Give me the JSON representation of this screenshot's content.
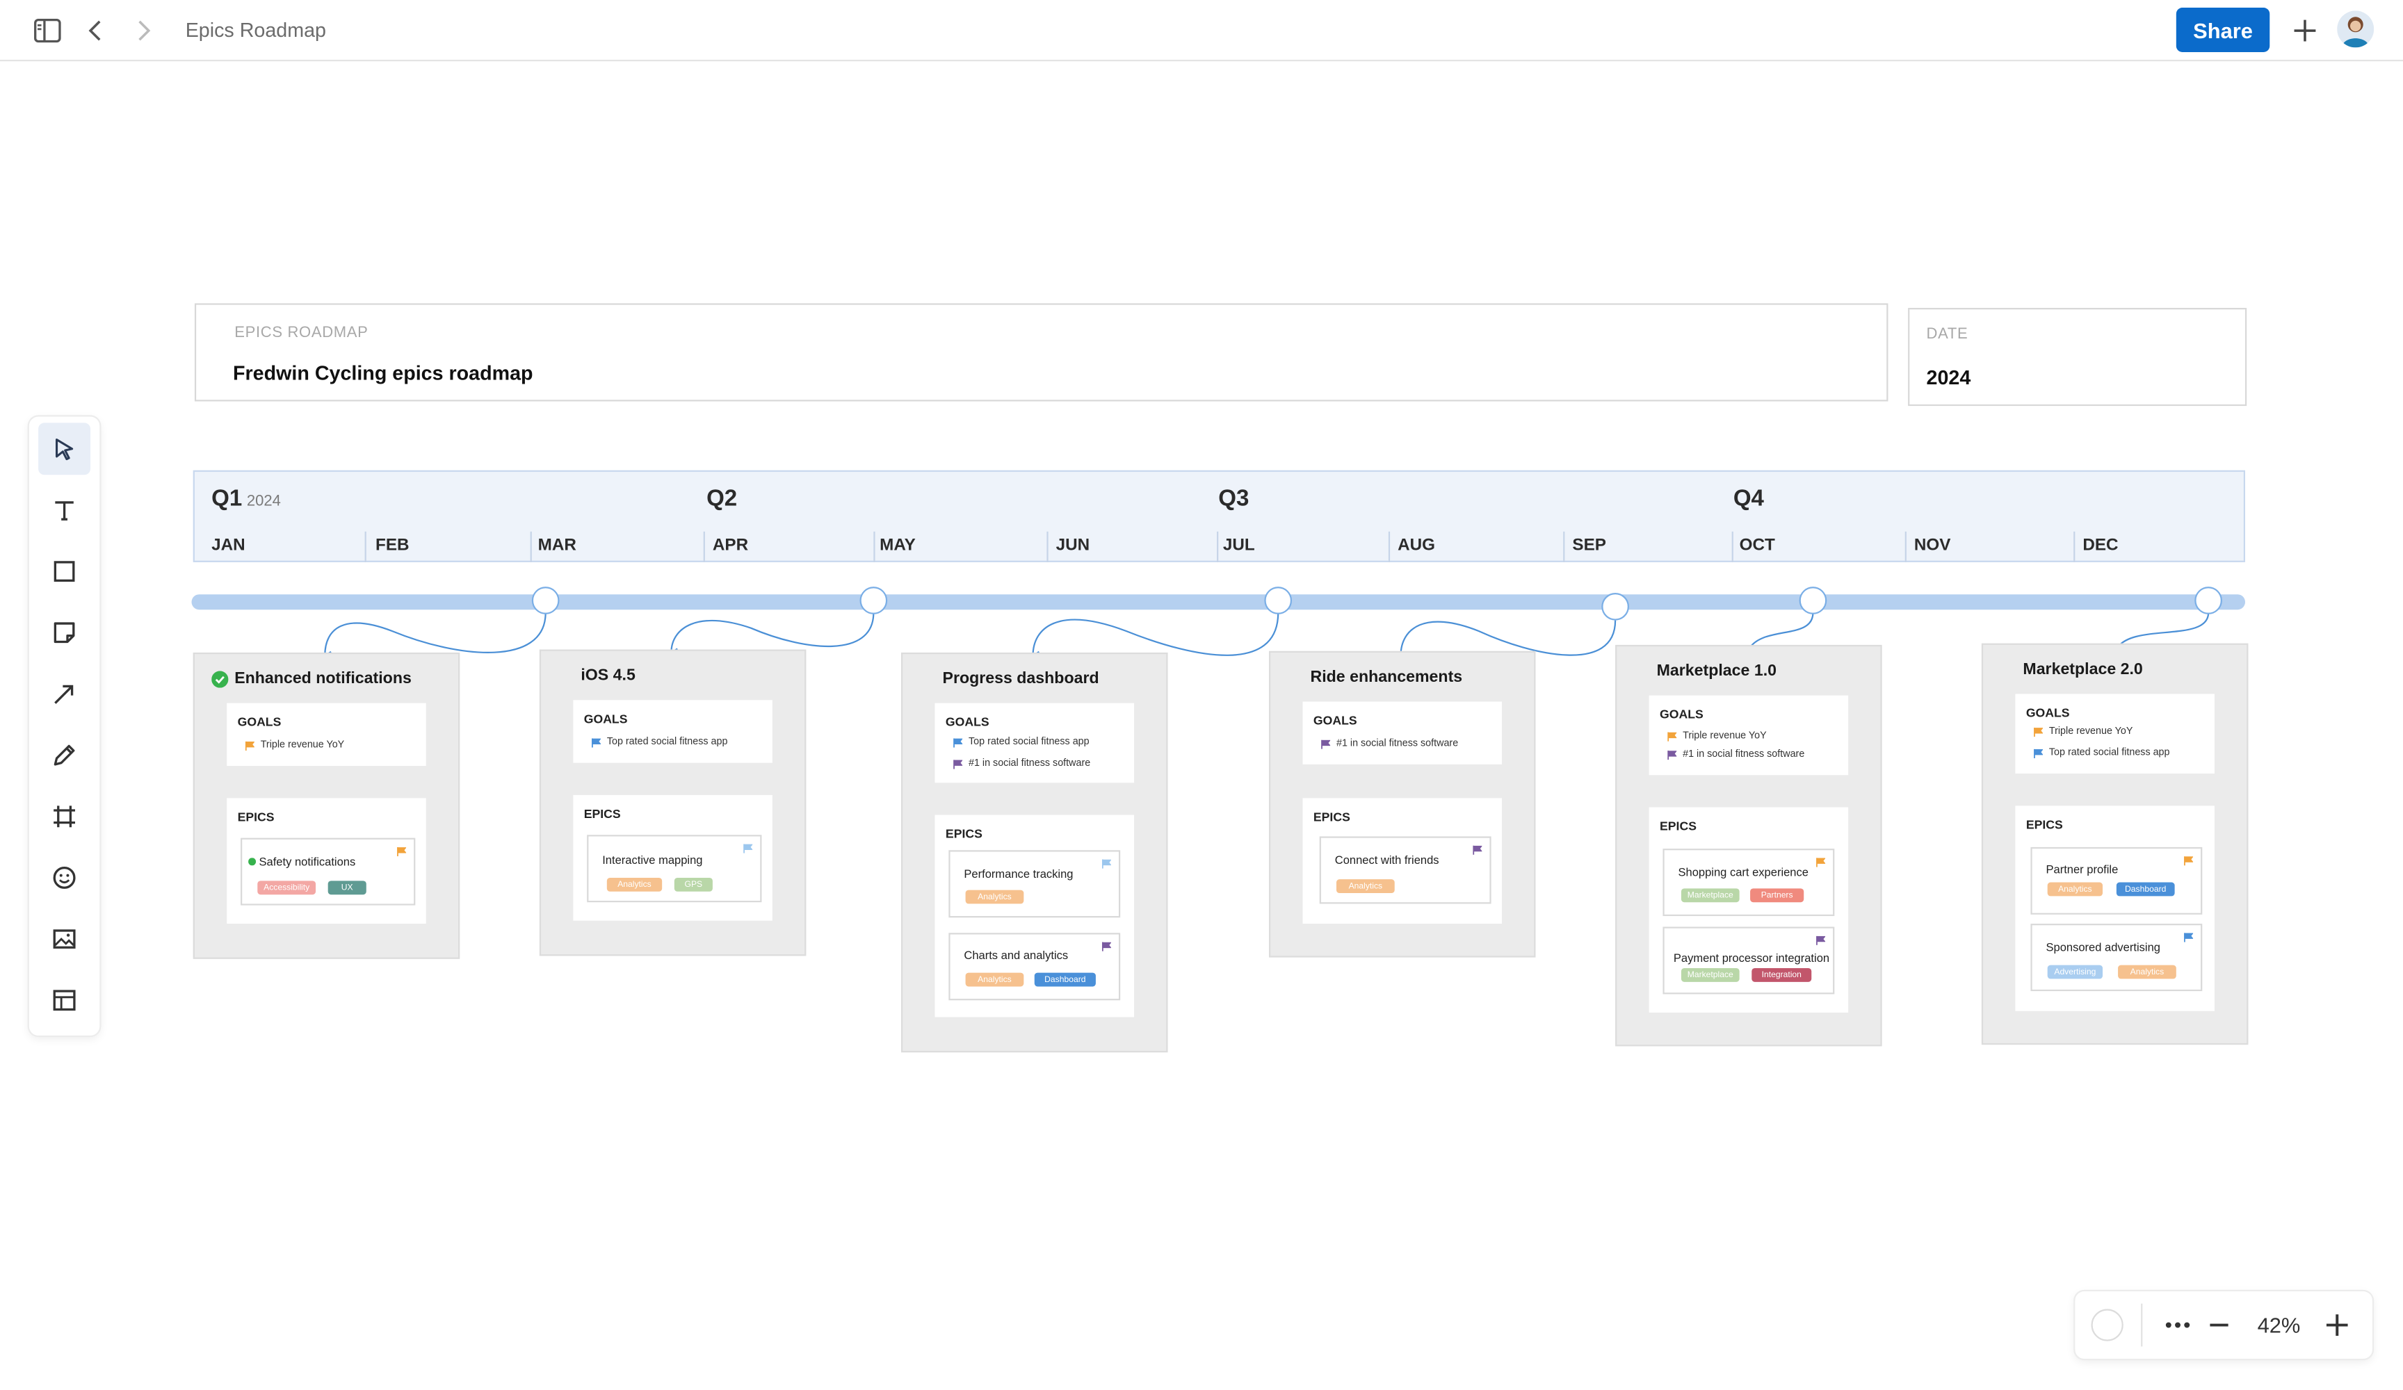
{
  "topbar": {
    "title": "Epics Roadmap",
    "share_label": "Share"
  },
  "tools": [
    "select-tool",
    "text-tool",
    "shape-tool",
    "sticky-note-tool",
    "arrow-tool",
    "pen-tool",
    "frame-tool",
    "emoji-tool",
    "image-tool",
    "template-tool"
  ],
  "header": {
    "label": "EPICS ROADMAP",
    "title": "Fredwin Cycling epics roadmap",
    "date_label": "DATE",
    "date_value": "2024"
  },
  "timeline": {
    "quarters": [
      {
        "label": "Q1",
        "year": "2024"
      },
      {
        "label": "Q2",
        "year": ""
      },
      {
        "label": "Q3",
        "year": ""
      },
      {
        "label": "Q4",
        "year": ""
      }
    ],
    "months": [
      "JAN",
      "FEB",
      "MAR",
      "APR",
      "MAY",
      "JUN",
      "JUL",
      "AUG",
      "SEP",
      "OCT",
      "NOV",
      "DEC"
    ]
  },
  "cards": [
    {
      "title": "Enhanced notifications",
      "done": true,
      "goals_label": "GOALS",
      "epics_label": "EPICS",
      "goals": [
        {
          "text": "Triple revenue YoY",
          "color": "#f2a33a"
        }
      ],
      "epics": [
        {
          "name": "Safety notifications",
          "done": true,
          "flag": "#f2a33a",
          "tags": [
            {
              "text": "Accessibility",
              "color": "#f3a7a4"
            },
            {
              "text": "UX",
              "color": "#5f9b93"
            }
          ]
        }
      ]
    },
    {
      "title": "iOS 4.5",
      "done": false,
      "goals_label": "GOALS",
      "epics_label": "EPICS",
      "goals": [
        {
          "text": "Top rated social fitness app",
          "color": "#4a90d9"
        }
      ],
      "epics": [
        {
          "name": "Interactive mapping",
          "done": false,
          "flag": "#9cc7ee",
          "tags": [
            {
              "text": "Analytics",
              "color": "#f6c18e"
            },
            {
              "text": "GPS",
              "color": "#b9d7a8"
            }
          ]
        }
      ]
    },
    {
      "title": "Progress dashboard",
      "done": false,
      "goals_label": "GOALS",
      "epics_label": "EPICS",
      "goals": [
        {
          "text": "Top rated social fitness app",
          "color": "#4a90d9"
        },
        {
          "text": "#1 in social fitness software",
          "color": "#7a5aa0"
        }
      ],
      "epics": [
        {
          "name": "Performance tracking",
          "done": false,
          "flag": "#9cc7ee",
          "tags": [
            {
              "text": "Analytics",
              "color": "#f6c18e"
            }
          ]
        },
        {
          "name": "Charts and analytics",
          "done": false,
          "flag": "#7a5aa0",
          "tags": [
            {
              "text": "Analytics",
              "color": "#f6c18e"
            },
            {
              "text": "Dashboard",
              "color": "#4a90d9"
            }
          ]
        }
      ]
    },
    {
      "title": "Ride enhancements",
      "done": false,
      "goals_label": "GOALS",
      "epics_label": "EPICS",
      "goals": [
        {
          "text": "#1 in social fitness software",
          "color": "#7a5aa0"
        }
      ],
      "epics": [
        {
          "name": "Connect with friends",
          "done": false,
          "flag": "#7a5aa0",
          "tags": [
            {
              "text": "Analytics",
              "color": "#f6c18e"
            }
          ]
        }
      ]
    },
    {
      "title": "Marketplace 1.0",
      "done": false,
      "goals_label": "GOALS",
      "epics_label": "EPICS",
      "goals": [
        {
          "text": "Triple revenue YoY",
          "color": "#f2a33a"
        },
        {
          "text": "#1 in social fitness software",
          "color": "#7a5aa0"
        }
      ],
      "epics": [
        {
          "name": "Shopping cart experience",
          "done": false,
          "flag": "#f2a33a",
          "tags": [
            {
              "text": "Marketplace",
              "color": "#b9d7a8"
            },
            {
              "text": "Partners",
              "color": "#f08a7e"
            }
          ]
        },
        {
          "name": "Payment processor integration",
          "done": false,
          "flag": "#7a5aa0",
          "tags": [
            {
              "text": "Marketplace",
              "color": "#b9d7a8"
            },
            {
              "text": "Integration",
              "color": "#c2566b"
            }
          ]
        }
      ]
    },
    {
      "title": "Marketplace 2.0",
      "done": false,
      "goals_label": "GOALS",
      "epics_label": "EPICS",
      "goals": [
        {
          "text": "Triple revenue YoY",
          "color": "#f2a33a"
        },
        {
          "text": "Top rated social fitness app",
          "color": "#4a90d9"
        }
      ],
      "epics": [
        {
          "name": "Partner profile",
          "done": false,
          "flag": "#f2a33a",
          "tags": [
            {
              "text": "Analytics",
              "color": "#f6c18e"
            },
            {
              "text": "Dashboard",
              "color": "#4a90d9"
            }
          ]
        },
        {
          "name": "Sponsored advertising",
          "done": false,
          "flag": "#4a90d9",
          "tags": [
            {
              "text": "Advertising",
              "color": "#a9cdf0"
            },
            {
              "text": "Analytics",
              "color": "#f6c18e"
            }
          ]
        }
      ]
    }
  ],
  "zoom": {
    "level": "42%"
  }
}
